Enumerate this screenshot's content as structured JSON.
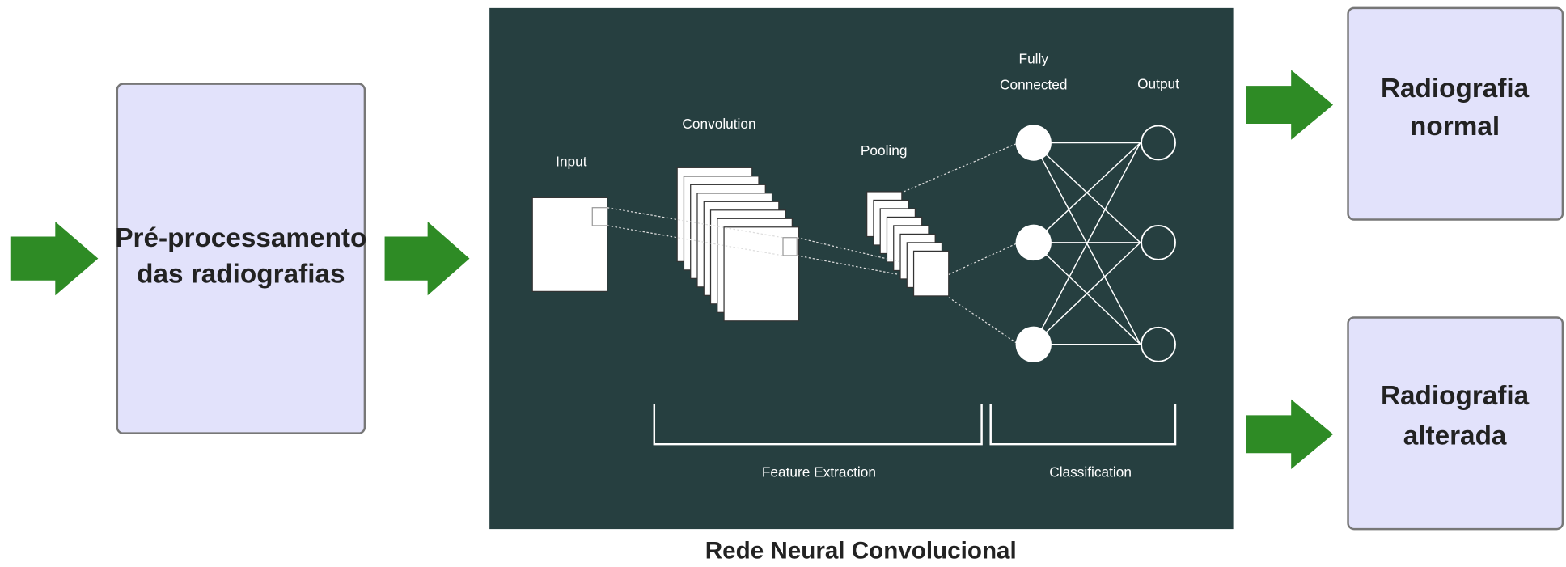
{
  "input_box": {
    "lines": [
      "Pré-processamento",
      "das radiografias"
    ]
  },
  "network": {
    "caption": "Rede Neural Convolucional",
    "layers": {
      "input": "Input",
      "convolution": "Convolution",
      "pooling": "Pooling",
      "fully_connected": [
        "Fully",
        "Connected"
      ],
      "output": "Output"
    },
    "stages": {
      "feature_extraction": "Feature Extraction",
      "classification": "Classification"
    }
  },
  "outputs": [
    {
      "lines": [
        "Radiografia",
        "normal"
      ]
    },
    {
      "lines": [
        "Radiografia",
        "alterada"
      ]
    }
  ]
}
